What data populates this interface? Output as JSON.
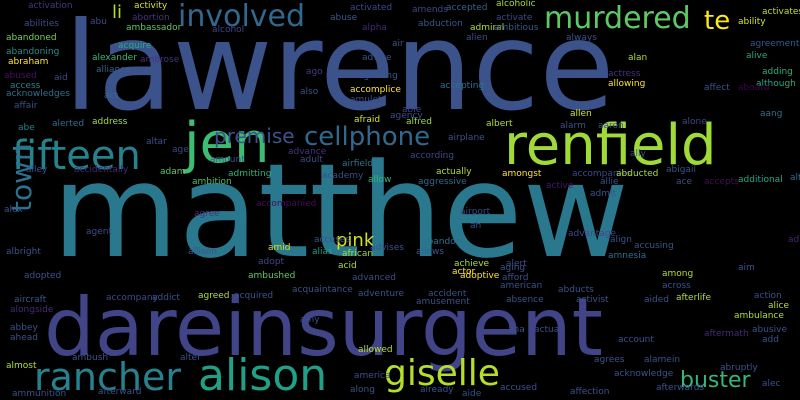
{
  "words": [
    {
      "text": "matthew",
      "color": "#2a788e"
    },
    {
      "text": "lawrence",
      "color": "#3b528b"
    },
    {
      "text": "dareinsurgent",
      "color": "#414487"
    },
    {
      "text": "renfield",
      "color": "#a0da39"
    },
    {
      "text": "jen",
      "color": "#3dbc74"
    },
    {
      "text": "fifteen",
      "color": "#25838e"
    },
    {
      "text": "alison",
      "color": "#1fa187"
    },
    {
      "text": "rancher",
      "color": "#26828e"
    },
    {
      "text": "giselle",
      "color": "#b5de2b"
    },
    {
      "text": "involved",
      "color": "#31688e"
    },
    {
      "text": "murdered",
      "color": "#5ec962"
    },
    {
      "text": "cellphone",
      "color": "#31688e"
    },
    {
      "text": "town",
      "color": "#2c728e"
    },
    {
      "text": "buster",
      "color": "#35b779"
    },
    {
      "text": "premise",
      "color": "#3b528b"
    },
    {
      "text": "pink",
      "color": "#d2e21b"
    },
    {
      "text": "te",
      "color": "#fde725"
    },
    {
      "text": "li",
      "color": "#b5de2b"
    },
    {
      "text": "abilities",
      "color": "#3e4a89"
    },
    {
      "text": "activity",
      "color": "#d8e219"
    },
    {
      "text": "abuse",
      "color": "#38598c"
    },
    {
      "text": "activated",
      "color": "#3e4989"
    },
    {
      "text": "amends",
      "color": "#404688"
    },
    {
      "text": "accepted",
      "color": "#33628d"
    },
    {
      "text": "alcoholic",
      "color": "#addc30"
    },
    {
      "text": "activates",
      "color": "#c2df23"
    },
    {
      "text": "ability",
      "color": "#d8e219"
    },
    {
      "text": "abandoned",
      "color": "#7ad151"
    },
    {
      "text": "abu",
      "color": "#3e4989"
    },
    {
      "text": "abortion",
      "color": "#453581"
    },
    {
      "text": "alcohol",
      "color": "#3f4788"
    },
    {
      "text": "alpha",
      "color": "#482878"
    },
    {
      "text": "abduction",
      "color": "#38588c"
    },
    {
      "text": "admiral",
      "color": "#b5de2b"
    },
    {
      "text": "activate",
      "color": "#3f4788"
    },
    {
      "text": "ambassador",
      "color": "#5ec962"
    },
    {
      "text": "ambitious",
      "color": "#38598c"
    },
    {
      "text": "always",
      "color": "#3b528b"
    },
    {
      "text": "activation",
      "color": "#453781"
    },
    {
      "text": "agreement",
      "color": "#375a8c"
    },
    {
      "text": "acquire",
      "color": "#25ab82"
    },
    {
      "text": "alien",
      "color": "#3e4c8a"
    },
    {
      "text": "air",
      "color": "#3a548c"
    },
    {
      "text": "alan",
      "color": "#addc30"
    },
    {
      "text": "abandoning",
      "color": "#21918c"
    },
    {
      "text": "abraham",
      "color": "#fde725"
    },
    {
      "text": "alexander",
      "color": "#38b977"
    },
    {
      "text": "ambrose",
      "color": "#46337f"
    },
    {
      "text": "advice",
      "color": "#3b528b"
    },
    {
      "text": "abused",
      "color": "#471164"
    },
    {
      "text": "alliance",
      "color": "#33638d"
    },
    {
      "text": "aid",
      "color": "#3f4889"
    },
    {
      "text": "access",
      "color": "#26828e"
    },
    {
      "text": "acknowledges",
      "color": "#2c728e"
    },
    {
      "text": "affair",
      "color": "#3b528b"
    },
    {
      "text": "ago",
      "color": "#433e85"
    },
    {
      "text": "agreeing",
      "color": "#38598c"
    },
    {
      "text": "accepting",
      "color": "#2c728e"
    },
    {
      "text": "amulet",
      "color": "#3e4a89"
    },
    {
      "text": "accomplice",
      "color": "#fde725"
    },
    {
      "text": "also",
      "color": "#3b528b"
    },
    {
      "text": "act",
      "color": "#306a8e"
    },
    {
      "text": "actress",
      "color": "#46327e"
    },
    {
      "text": "allowing",
      "color": "#fde725"
    },
    {
      "text": "allen",
      "color": "#d8e219"
    },
    {
      "text": "affect",
      "color": "#3b528b"
    },
    {
      "text": "adding",
      "color": "#29af7f"
    },
    {
      "text": "although",
      "color": "#25ac82"
    },
    {
      "text": "alive",
      "color": "#22a884"
    },
    {
      "text": "aboard",
      "color": "#440154"
    },
    {
      "text": "afraid",
      "color": "#d8e219"
    },
    {
      "text": "alfred",
      "color": "#a0da39"
    },
    {
      "text": "albert",
      "color": "#b5de2b"
    },
    {
      "text": "alarm",
      "color": "#3b528b"
    },
    {
      "text": "aaron",
      "color": "#3b528b"
    },
    {
      "text": "alone",
      "color": "#3f4788"
    },
    {
      "text": "aang",
      "color": "#2d718e"
    },
    {
      "text": "able",
      "color": "#414487"
    },
    {
      "text": "agency",
      "color": "#3e4c8a"
    },
    {
      "text": "abe",
      "color": "#27808e"
    },
    {
      "text": "address",
      "color": "#a5db36"
    },
    {
      "text": "alerted",
      "color": "#2d708e"
    },
    {
      "text": "altar",
      "color": "#3b528b"
    },
    {
      "text": "age",
      "color": "#3f4788"
    },
    {
      "text": "amount",
      "color": "#3b528b"
    },
    {
      "text": "advance",
      "color": "#46337e"
    },
    {
      "text": "adult",
      "color": "#3e4a89"
    },
    {
      "text": "airfield",
      "color": "#2c728e"
    },
    {
      "text": "airplane",
      "color": "#3b528b"
    },
    {
      "text": "according",
      "color": "#3f4788"
    },
    {
      "text": "ally",
      "color": "#3b528b"
    },
    {
      "text": "alley",
      "color": "#3b528b"
    },
    {
      "text": "accidentally",
      "color": "#482878"
    },
    {
      "text": "adam",
      "color": "#5ec962"
    },
    {
      "text": "ambition",
      "color": "#4ac16d"
    },
    {
      "text": "admitting",
      "color": "#2fb47c"
    },
    {
      "text": "academy",
      "color": "#3e4c8a"
    },
    {
      "text": "allow",
      "color": "#32b67a"
    },
    {
      "text": "aggressive",
      "color": "#31688e"
    },
    {
      "text": "actually",
      "color": "#b5de2b"
    },
    {
      "text": "amongst",
      "color": "#fde725"
    },
    {
      "text": "accompanies",
      "color": "#3e4989"
    },
    {
      "text": "active",
      "color": "#48186a"
    },
    {
      "text": "abducted",
      "color": "#addc30"
    },
    {
      "text": "abigail",
      "color": "#3b528b"
    },
    {
      "text": "allie",
      "color": "#3b528b"
    },
    {
      "text": "ace",
      "color": "#3b528b"
    },
    {
      "text": "accepts",
      "color": "#460a5d"
    },
    {
      "text": "additional",
      "color": "#22a884"
    },
    {
      "text": "alternate",
      "color": "#2e6e8e"
    },
    {
      "text": "admit",
      "color": "#3a548c"
    },
    {
      "text": "alex",
      "color": "#3b528b"
    },
    {
      "text": "agree",
      "color": "#46337f"
    },
    {
      "text": "amid",
      "color": "#d8e219"
    },
    {
      "text": "accompanied",
      "color": "#460b5e"
    },
    {
      "text": "albright",
      "color": "#3b528b"
    },
    {
      "text": "agent",
      "color": "#3e4c8a"
    },
    {
      "text": "allison",
      "color": "#3b528b"
    },
    {
      "text": "accuses",
      "color": "#3b528b"
    },
    {
      "text": "african",
      "color": "#a0da39"
    },
    {
      "text": "alias",
      "color": "#1fa088"
    },
    {
      "text": "advises",
      "color": "#3b528b"
    },
    {
      "text": "abandon",
      "color": "#2c728e"
    },
    {
      "text": "allows",
      "color": "#375a8c"
    },
    {
      "text": "achieve",
      "color": "#addc30"
    },
    {
      "text": "adoptive",
      "color": "#fde725"
    },
    {
      "text": "airport",
      "color": "#3e4a89"
    },
    {
      "text": "ah",
      "color": "#3b528b"
    },
    {
      "text": "alert",
      "color": "#3e4c8a"
    },
    {
      "text": "advantage",
      "color": "#3e4989"
    },
    {
      "text": "align",
      "color": "#3b528b"
    },
    {
      "text": "accusing",
      "color": "#3a548c"
    },
    {
      "text": "amnesia",
      "color": "#2e6e8e"
    },
    {
      "text": "alice",
      "color": "#b5de2b"
    },
    {
      "text": "adopted",
      "color": "#3b528b"
    },
    {
      "text": "adopt",
      "color": "#3e4a89"
    },
    {
      "text": "ambushed",
      "color": "#5ec962"
    },
    {
      "text": "acid",
      "color": "#addc30"
    },
    {
      "text": "advanced",
      "color": "#3e4c8a"
    },
    {
      "text": "actor",
      "color": "#fde725"
    },
    {
      "text": "aging",
      "color": "#3b528b"
    },
    {
      "text": "afford",
      "color": "#3b528b"
    },
    {
      "text": "american",
      "color": "#3b528b"
    },
    {
      "text": "among",
      "color": "#b5de2b"
    },
    {
      "text": "across",
      "color": "#3b528b"
    },
    {
      "text": "aim",
      "color": "#3b528b"
    },
    {
      "text": "aircraft",
      "color": "#3b528b"
    },
    {
      "text": "alongside",
      "color": "#482878"
    },
    {
      "text": "accompany",
      "color": "#3e4a89"
    },
    {
      "text": "addict",
      "color": "#3b528b"
    },
    {
      "text": "agreed",
      "color": "#b5de2b"
    },
    {
      "text": "acquired",
      "color": "#3b528b"
    },
    {
      "text": "acquaintance",
      "color": "#3b528b"
    },
    {
      "text": "adventure",
      "color": "#3b528b"
    },
    {
      "text": "accident",
      "color": "#3b528b"
    },
    {
      "text": "amusement",
      "color": "#3b528b"
    },
    {
      "text": "abducts",
      "color": "#3b528b"
    },
    {
      "text": "absence",
      "color": "#3b528b"
    },
    {
      "text": "activist",
      "color": "#3b528b"
    },
    {
      "text": "aided",
      "color": "#3b528b"
    },
    {
      "text": "afterlife",
      "color": "#b5de2b"
    },
    {
      "text": "action",
      "color": "#3b528b"
    },
    {
      "text": "ambulance",
      "color": "#b5de2b"
    },
    {
      "text": "abusive",
      "color": "#3b528b"
    },
    {
      "text": "add",
      "color": "#3b528b"
    },
    {
      "text": "abbey",
      "color": "#3b528b"
    },
    {
      "text": "ahead",
      "color": "#3b528b"
    },
    {
      "text": "amy",
      "color": "#3b528b"
    },
    {
      "text": "ana",
      "color": "#3b528b"
    },
    {
      "text": "actual",
      "color": "#3b528b"
    },
    {
      "text": "account",
      "color": "#3b528b"
    },
    {
      "text": "aftermath",
      "color": "#482878"
    },
    {
      "text": "almost",
      "color": "#b5de2b"
    },
    {
      "text": "ambush",
      "color": "#3b528b"
    },
    {
      "text": "alter",
      "color": "#3b528b"
    },
    {
      "text": "alamein",
      "color": "#3b528b"
    },
    {
      "text": "acknowledge",
      "color": "#3b528b"
    },
    {
      "text": "abruptly",
      "color": "#3b528b"
    },
    {
      "text": "agrees",
      "color": "#3b528b"
    },
    {
      "text": "america",
      "color": "#3b528b"
    },
    {
      "text": "allowed",
      "color": "#b5de2b"
    },
    {
      "text": "along",
      "color": "#3b528b"
    },
    {
      "text": "already",
      "color": "#3b528b"
    },
    {
      "text": "accused",
      "color": "#3b528b"
    },
    {
      "text": "alec",
      "color": "#3b528b"
    },
    {
      "text": "afterwards",
      "color": "#3b528b"
    },
    {
      "text": "ammunition",
      "color": "#3b528b"
    },
    {
      "text": "afterward",
      "color": "#3b528b"
    },
    {
      "text": "aide",
      "color": "#3b528b"
    },
    {
      "text": "affection",
      "color": "#3b528b"
    },
    {
      "text": "ad",
      "color": "#482878"
    }
  ]
}
